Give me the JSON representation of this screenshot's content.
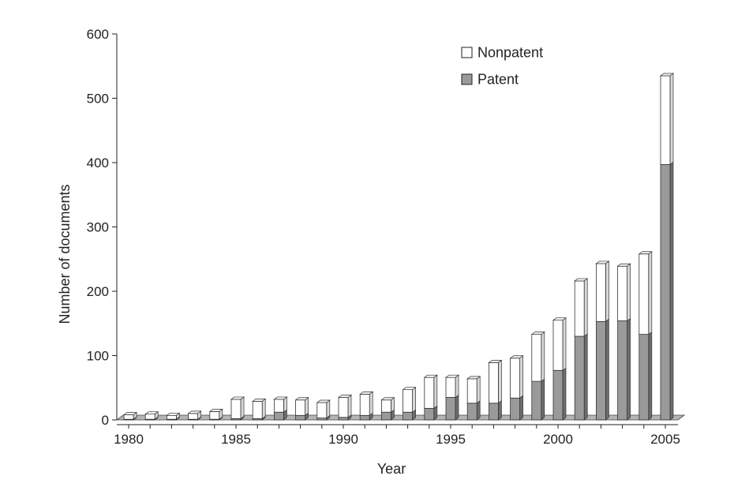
{
  "chart_data": {
    "type": "bar",
    "stacked": true,
    "three_d": true,
    "xlabel": "Year",
    "ylabel": "Number of documents",
    "ylim": [
      0,
      600
    ],
    "yticks": [
      0,
      100,
      200,
      300,
      400,
      500,
      600
    ],
    "xticks": [
      1980,
      1985,
      1990,
      1995,
      2000,
      2005
    ],
    "categories": [
      1980,
      1981,
      1982,
      1983,
      1984,
      1985,
      1986,
      1987,
      1988,
      1989,
      1990,
      1991,
      1992,
      1993,
      1994,
      1995,
      1996,
      1997,
      1998,
      1999,
      2000,
      2001,
      2002,
      2003,
      2004,
      2005
    ],
    "series": [
      {
        "name": "Patent",
        "color": "#9a9a9a",
        "values": [
          1,
          1,
          1,
          1,
          1,
          2,
          2,
          12,
          7,
          3,
          4,
          7,
          12,
          12,
          18,
          35,
          26,
          26,
          34,
          60,
          77,
          130,
          153,
          154,
          133,
          397
        ]
      },
      {
        "name": "Nonpatent",
        "color": "#ffffff",
        "values": [
          7,
          8,
          6,
          9,
          12,
          30,
          27,
          20,
          24,
          24,
          31,
          33,
          19,
          35,
          48,
          31,
          38,
          63,
          62,
          73,
          78,
          86,
          90,
          85,
          125,
          138
        ]
      }
    ],
    "legend": {
      "position": "top-right",
      "order": [
        "Nonpatent",
        "Patent"
      ]
    },
    "grid": false
  }
}
